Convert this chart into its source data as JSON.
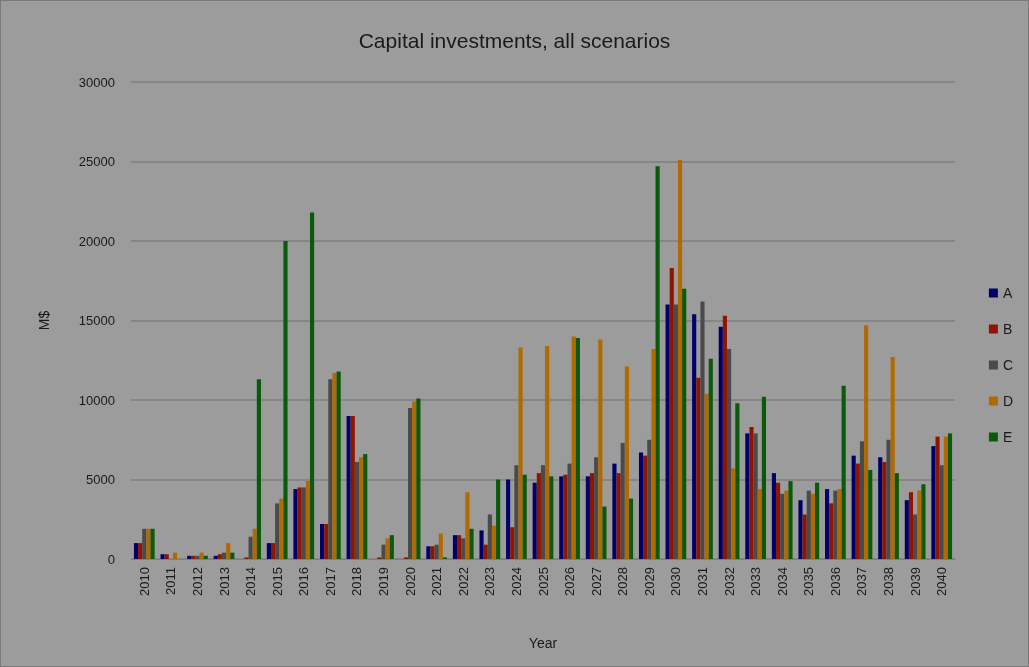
{
  "chart_data": {
    "type": "bar",
    "title": "Capital investments, all scenarios",
    "xlabel": "Year",
    "ylabel": "M$",
    "categories": [
      "2010",
      "2011",
      "2012",
      "2013",
      "2014",
      "2015",
      "2016",
      "2017",
      "2018",
      "2019",
      "2020",
      "2021",
      "2022",
      "2023",
      "2024",
      "2025",
      "2026",
      "2027",
      "2028",
      "2029",
      "2030",
      "2031",
      "2032",
      "2033",
      "2034",
      "2035",
      "2036",
      "2037",
      "2038",
      "2039",
      "2040"
    ],
    "series": [
      {
        "name": "A",
        "color": "#00006b",
        "values": [
          1000,
          300,
          200,
          200,
          0,
          1000,
          4400,
          2200,
          9000,
          0,
          0,
          800,
          1500,
          1800,
          5000,
          4800,
          5200,
          5200,
          6000,
          6700,
          16000,
          15400,
          14600,
          7900,
          5400,
          3700,
          4400,
          6500,
          6400,
          3700,
          7100
        ]
      },
      {
        "name": "B",
        "color": "#8f1500",
        "values": [
          1000,
          300,
          200,
          300,
          100,
          1000,
          4500,
          2200,
          9000,
          100,
          100,
          800,
          1500,
          900,
          2000,
          5400,
          5300,
          5400,
          5400,
          6500,
          18300,
          11400,
          15300,
          8300,
          4800,
          2800,
          3500,
          6000,
          6100,
          4200,
          7700
        ]
      },
      {
        "name": "C",
        "color": "#4a4a4a",
        "values": [
          1900,
          0,
          200,
          400,
          1400,
          3500,
          4500,
          11300,
          6100,
          900,
          9500,
          900,
          1300,
          2800,
          5900,
          5900,
          6000,
          6400,
          7300,
          7500,
          16000,
          16200,
          13200,
          7900,
          4100,
          4300,
          4300,
          7400,
          7500,
          2800,
          5900
        ]
      },
      {
        "name": "D",
        "color": "#b06a00",
        "values": [
          1900,
          400,
          400,
          1000,
          1900,
          3800,
          4900,
          11700,
          6400,
          1300,
          9900,
          1600,
          4200,
          2100,
          13300,
          13400,
          14000,
          13800,
          12100,
          13200,
          25100,
          10400,
          5700,
          4400,
          4300,
          4100,
          4400,
          14700,
          12700,
          4300,
          7700
        ]
      },
      {
        "name": "E",
        "color": "#0b5a0b",
        "values": [
          1900,
          0,
          200,
          400,
          11300,
          20000,
          21800,
          11800,
          6600,
          1500,
          10100,
          100,
          1900,
          5000,
          5300,
          5200,
          13900,
          3300,
          3800,
          24700,
          17000,
          12600,
          9800,
          10200,
          4900,
          4800,
          10900,
          5600,
          5400,
          4700,
          7900
        ]
      }
    ],
    "ylim": [
      0,
      30000
    ],
    "yticks": [
      0,
      5000,
      10000,
      15000,
      20000,
      25000,
      30000
    ],
    "grid": "y",
    "legend": "right"
  }
}
